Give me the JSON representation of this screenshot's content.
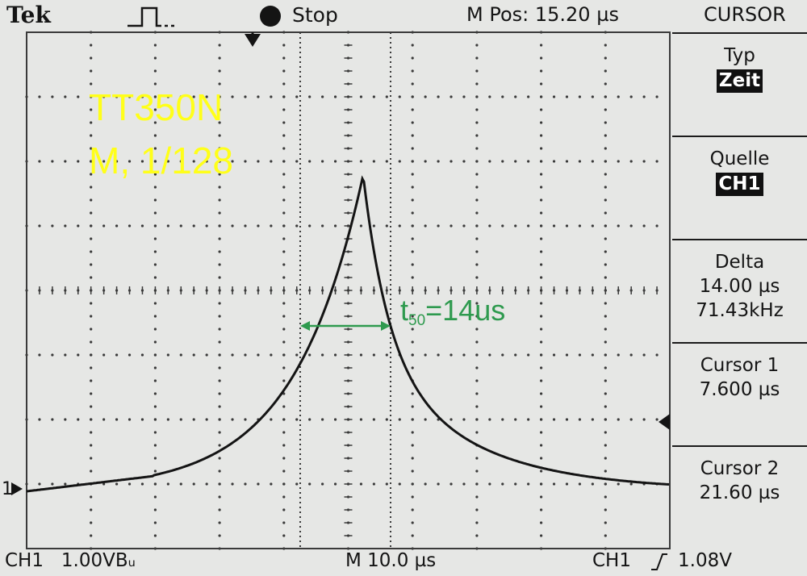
{
  "header": {
    "brand": "Tek",
    "trigger_icon": "pulse-trigger-icon",
    "acq_state": "Stop",
    "m_pos": "M Pos: 15.20 µs",
    "menu_title": "CURSOR"
  },
  "menu": {
    "type_label": "Typ",
    "type_value": "Zeit",
    "source_label": "Quelle",
    "source_value": "CH1",
    "delta_label": "Delta",
    "delta_time": "14.00 µs",
    "delta_freq": "71.43kHz",
    "cursor1_label": "Cursor 1",
    "cursor1_value": "7.600 µs",
    "cursor2_label": "Cursor 2",
    "cursor2_value": "21.60 µs"
  },
  "footer": {
    "ch1_scale": "CH1   1.00VBᵤ",
    "timebase": "M 10.0 µs",
    "trigger_source": "CH1",
    "trigger_level": "1.08V"
  },
  "overlay": {
    "line1": "TT350N",
    "line2": "M, 1/128",
    "t50_base": "t",
    "t50_sub": "50",
    "t50_rest": "=14us"
  },
  "markers": {
    "channel_ground": "1"
  },
  "colors": {
    "screen": "#e6e7e5",
    "trace": "#141414",
    "overlay_text": "#ffff19",
    "annotation": "#2e9a4e"
  }
}
